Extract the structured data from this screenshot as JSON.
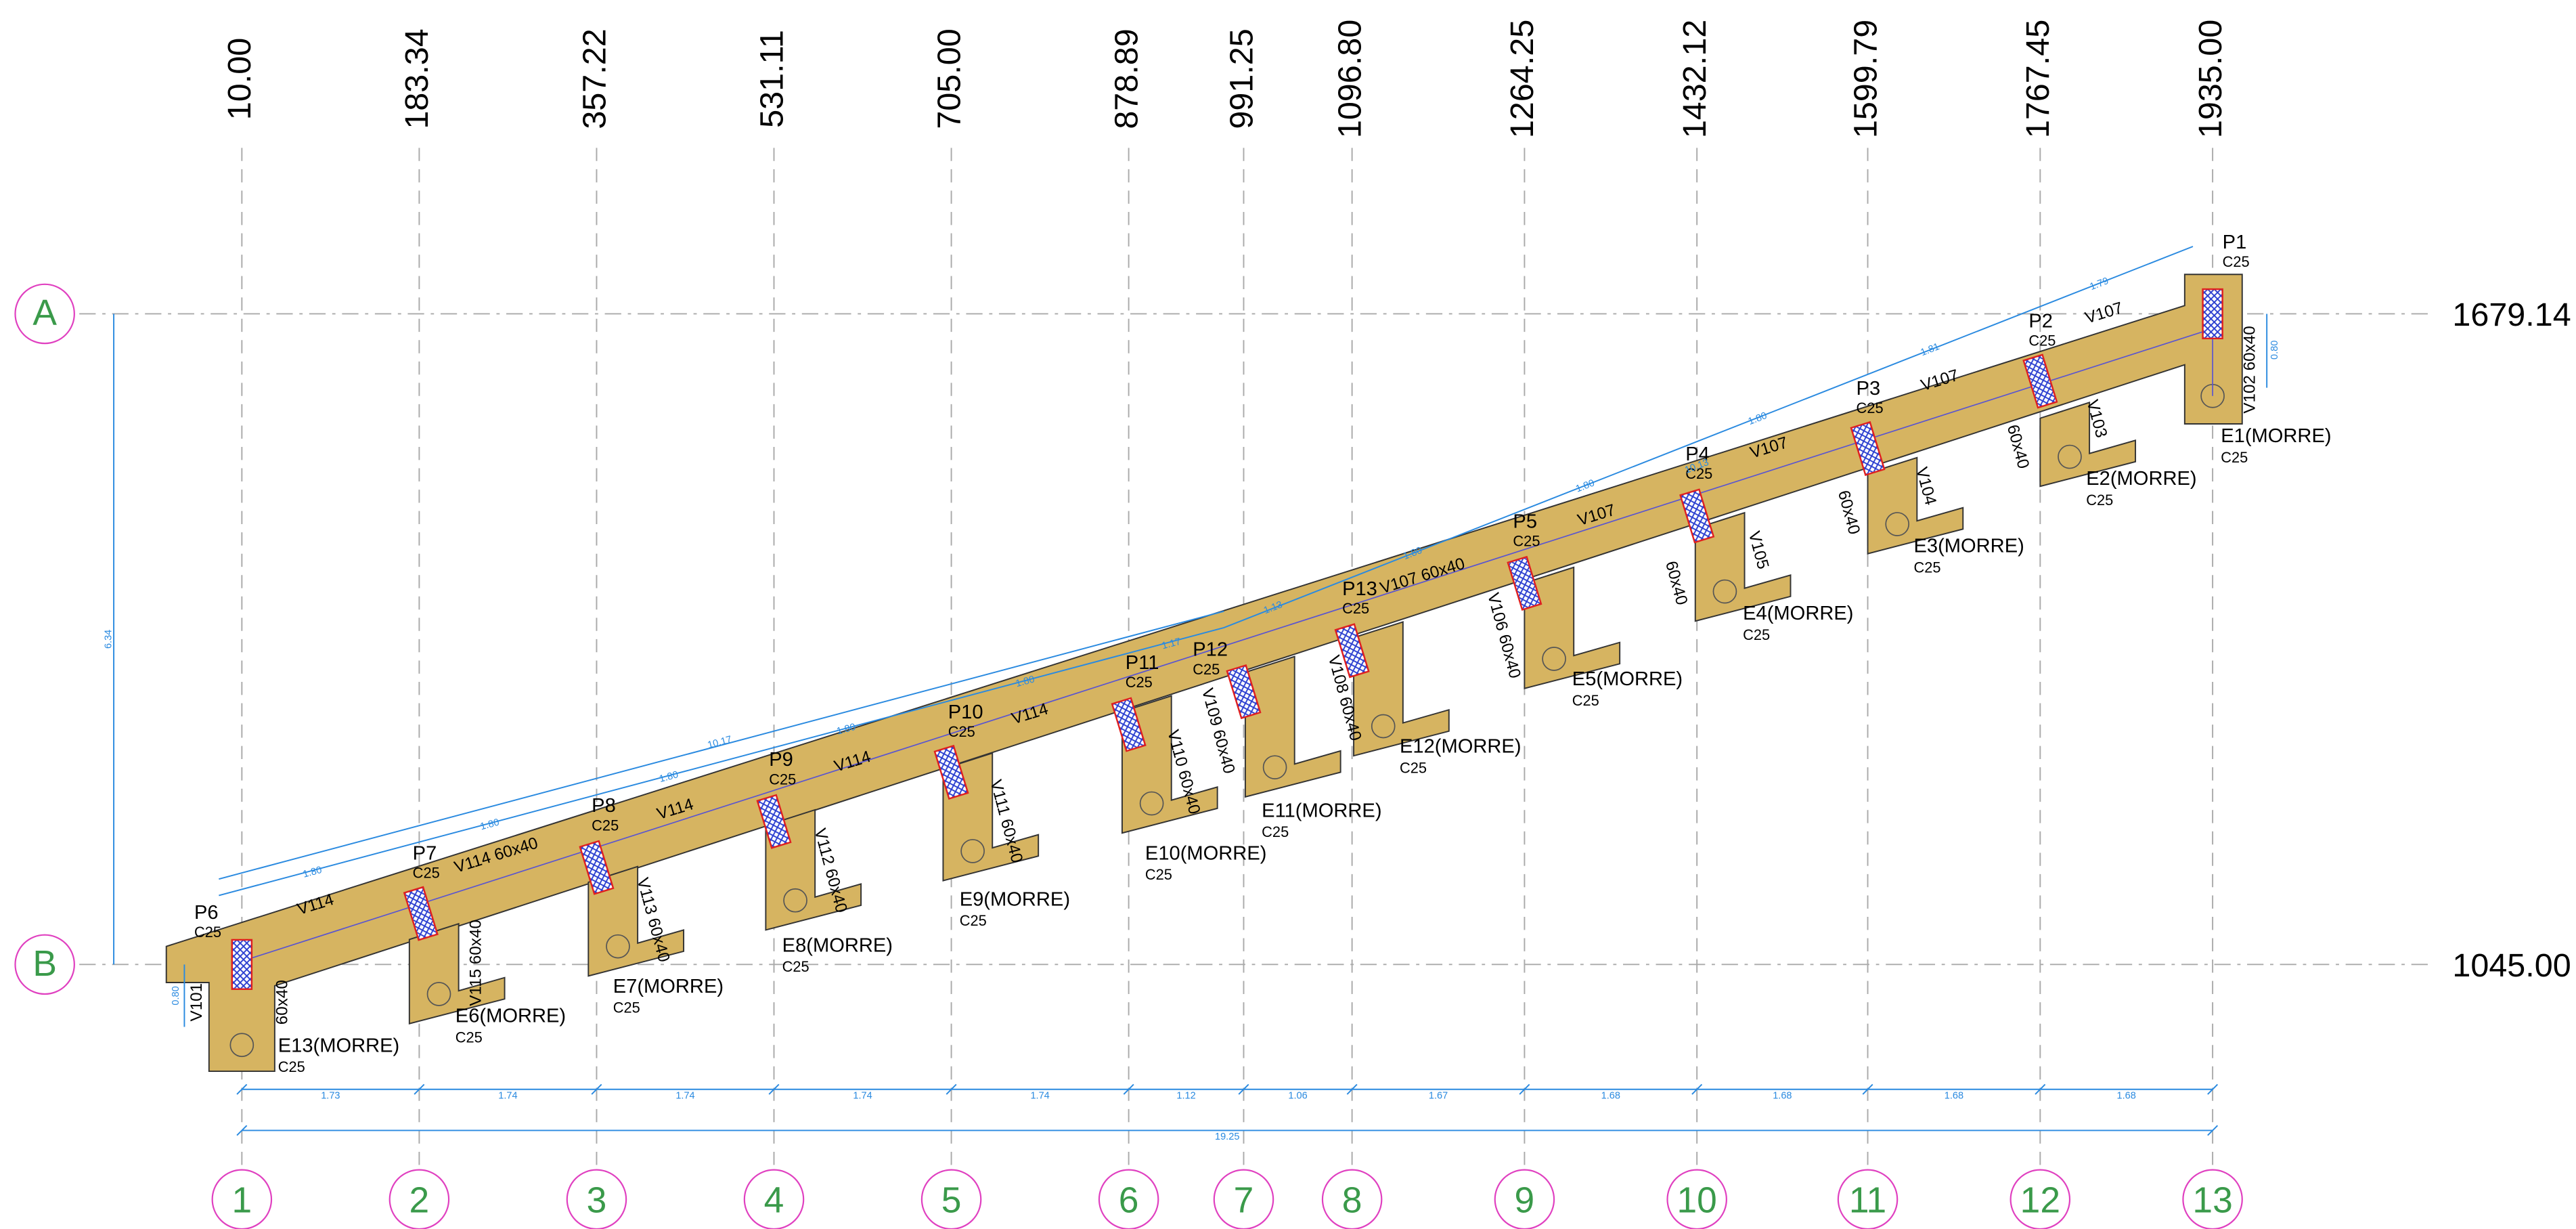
{
  "grid": {
    "columns": [
      {
        "label": "1",
        "coord": "10.00"
      },
      {
        "label": "2",
        "coord": "183.34"
      },
      {
        "label": "3",
        "coord": "357.22"
      },
      {
        "label": "4",
        "coord": "531.11"
      },
      {
        "label": "5",
        "coord": "705.00"
      },
      {
        "label": "6",
        "coord": "878.89"
      },
      {
        "label": "7",
        "coord": "991.25"
      },
      {
        "label": "8",
        "coord": "1096.80"
      },
      {
        "label": "9",
        "coord": "1264.25"
      },
      {
        "label": "10",
        "coord": "1432.12"
      },
      {
        "label": "11",
        "coord": "1599.79"
      },
      {
        "label": "12",
        "coord": "1767.45"
      },
      {
        "label": "13",
        "coord": "1935.00"
      }
    ],
    "rows": [
      {
        "label": "A",
        "coord": "1679.14"
      },
      {
        "label": "B",
        "coord": "1045.00"
      }
    ]
  },
  "pillars": [
    {
      "name": "P1",
      "concrete": "C25"
    },
    {
      "name": "P2",
      "concrete": "C25"
    },
    {
      "name": "P3",
      "concrete": "C25"
    },
    {
      "name": "P4",
      "concrete": "C25"
    },
    {
      "name": "P5",
      "concrete": "C25"
    },
    {
      "name": "P6",
      "concrete": "C25"
    },
    {
      "name": "P7",
      "concrete": "C25"
    },
    {
      "name": "P8",
      "concrete": "C25"
    },
    {
      "name": "P9",
      "concrete": "C25"
    },
    {
      "name": "P10",
      "concrete": "C25"
    },
    {
      "name": "P11",
      "concrete": "C25"
    },
    {
      "name": "P12",
      "concrete": "C25"
    },
    {
      "name": "P13",
      "concrete": "C25"
    }
  ],
  "footings": [
    {
      "name": "E1(MORRE)",
      "concrete": "C25"
    },
    {
      "name": "E2(MORRE)",
      "concrete": "C25"
    },
    {
      "name": "E3(MORRE)",
      "concrete": "C25"
    },
    {
      "name": "E4(MORRE)",
      "concrete": "C25"
    },
    {
      "name": "E5(MORRE)",
      "concrete": "C25"
    },
    {
      "name": "E6(MORRE)",
      "concrete": "C25"
    },
    {
      "name": "E7(MORRE)",
      "concrete": "C25"
    },
    {
      "name": "E8(MORRE)",
      "concrete": "C25"
    },
    {
      "name": "E9(MORRE)",
      "concrete": "C25"
    },
    {
      "name": "E10(MORRE)",
      "concrete": "C25"
    },
    {
      "name": "E11(MORRE)",
      "concrete": "C25"
    },
    {
      "name": "E12(MORRE)",
      "concrete": "C25"
    },
    {
      "name": "E13(MORRE)",
      "concrete": "C25"
    }
  ],
  "beams": [
    "V101",
    "60x40",
    "V114",
    "V114 60x40",
    "V114",
    "V114",
    "V114",
    "V115 60x40",
    "V113 60x40",
    "V112 60x40",
    "V111 60x40",
    "V110 60x40",
    "V109 60x40",
    "V108 60x40",
    "V107 60x40",
    "V106 60x40",
    "V107",
    "V107",
    "V107",
    "V107",
    "V105",
    "60x40",
    "V104",
    "60x40",
    "V103",
    "60x40",
    "V102 60x40"
  ],
  "dimensions": {
    "bottom": [
      "1.73",
      "1.74",
      "1.74",
      "1.74",
      "1.74",
      "1.12",
      "1.06",
      "1.67",
      "1.68",
      "1.68",
      "1.68",
      "1.68"
    ],
    "total": "19.25",
    "top": [
      "1.80",
      "1.80",
      "1.80",
      "1.80",
      "1.80",
      "1.17",
      "1.13",
      "1.80",
      "1.80",
      "1.80",
      "1.81",
      "1.79"
    ],
    "overall": [
      "10.17",
      "10.13"
    ],
    "height": "6.34",
    "ends": [
      "0.80",
      "0.80"
    ]
  }
}
